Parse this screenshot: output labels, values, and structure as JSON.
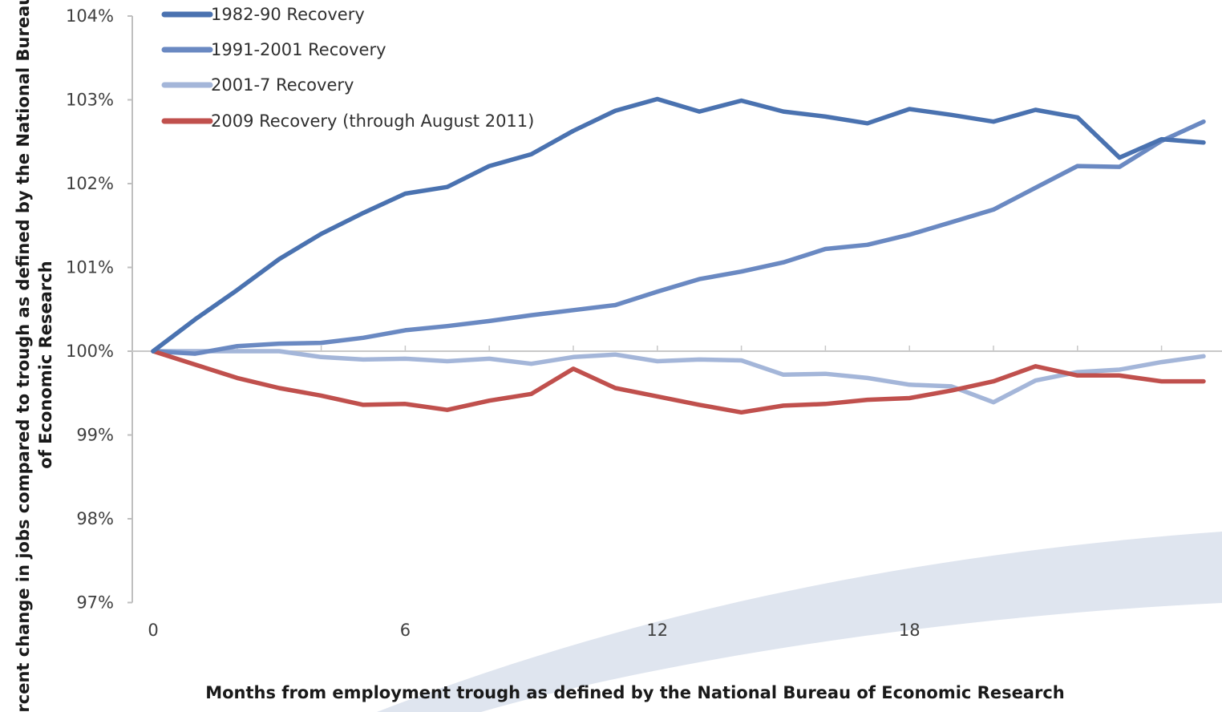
{
  "chart_data": {
    "type": "line",
    "title": "",
    "xlabel": "Months from employment trough as defined by the National Bureau of Economic Research",
    "ylabel_lines": [
      "Percent change in jobs compared to trough as defined by the National Bureau",
      "of Economic Research"
    ],
    "xlim": [
      0,
      25
    ],
    "ylim": [
      97,
      104
    ],
    "x_ticks": [
      0,
      6,
      12,
      18
    ],
    "y_ticks": [
      {
        "value": 104,
        "label": "104%"
      },
      {
        "value": 103,
        "label": "103%"
      },
      {
        "value": 102,
        "label": "102%"
      },
      {
        "value": 101,
        "label": "101%"
      },
      {
        "value": 100,
        "label": "100%"
      },
      {
        "value": 99,
        "label": "99%"
      },
      {
        "value": 98,
        "label": "98%"
      },
      {
        "value": 97,
        "label": "97%"
      }
    ],
    "legend_position": "top-left",
    "grid": false,
    "x": [
      0,
      1,
      2,
      3,
      4,
      5,
      6,
      7,
      8,
      9,
      10,
      11,
      12,
      13,
      14,
      15,
      16,
      17,
      18,
      19,
      20,
      21,
      22,
      23,
      24,
      25
    ],
    "series": [
      {
        "name": "1982-90 Recovery",
        "color": "#4a72b0",
        "values": [
          100.0,
          100.38,
          100.73,
          101.1,
          101.4,
          101.65,
          101.88,
          101.96,
          102.21,
          102.35,
          102.63,
          102.87,
          103.01,
          102.86,
          102.99,
          102.86,
          102.8,
          102.72,
          102.89,
          102.82,
          102.74,
          102.88,
          102.79,
          102.31,
          102.53,
          102.49
        ]
      },
      {
        "name": "1991-2001 Recovery",
        "color": "#6a89c2",
        "values": [
          100.0,
          99.97,
          100.06,
          100.09,
          100.1,
          100.16,
          100.25,
          100.3,
          100.36,
          100.43,
          100.49,
          100.55,
          100.71,
          100.86,
          100.95,
          101.06,
          101.22,
          101.27,
          101.39,
          101.54,
          101.69,
          101.95,
          102.21,
          102.2,
          102.51,
          102.74
        ]
      },
      {
        "name": "2001-7 Recovery",
        "color": "#a4b6d9",
        "values": [
          100.0,
          100.0,
          100.0,
          100.0,
          99.93,
          99.9,
          99.91,
          99.88,
          99.91,
          99.85,
          99.93,
          99.96,
          99.88,
          99.9,
          99.89,
          99.72,
          99.73,
          99.68,
          99.6,
          99.58,
          99.39,
          99.65,
          99.75,
          99.78,
          99.87,
          99.94
        ]
      },
      {
        "name": "2009 Recovery (through August  2011)",
        "color": "#c0504d",
        "values": [
          100.0,
          99.84,
          99.68,
          99.56,
          99.47,
          99.36,
          99.37,
          99.3,
          99.41,
          99.49,
          99.79,
          99.56,
          99.46,
          99.36,
          99.27,
          99.35,
          99.37,
          99.42,
          99.44,
          99.53,
          99.64,
          99.82,
          99.71,
          99.71,
          99.64,
          99.64
        ]
      }
    ]
  }
}
